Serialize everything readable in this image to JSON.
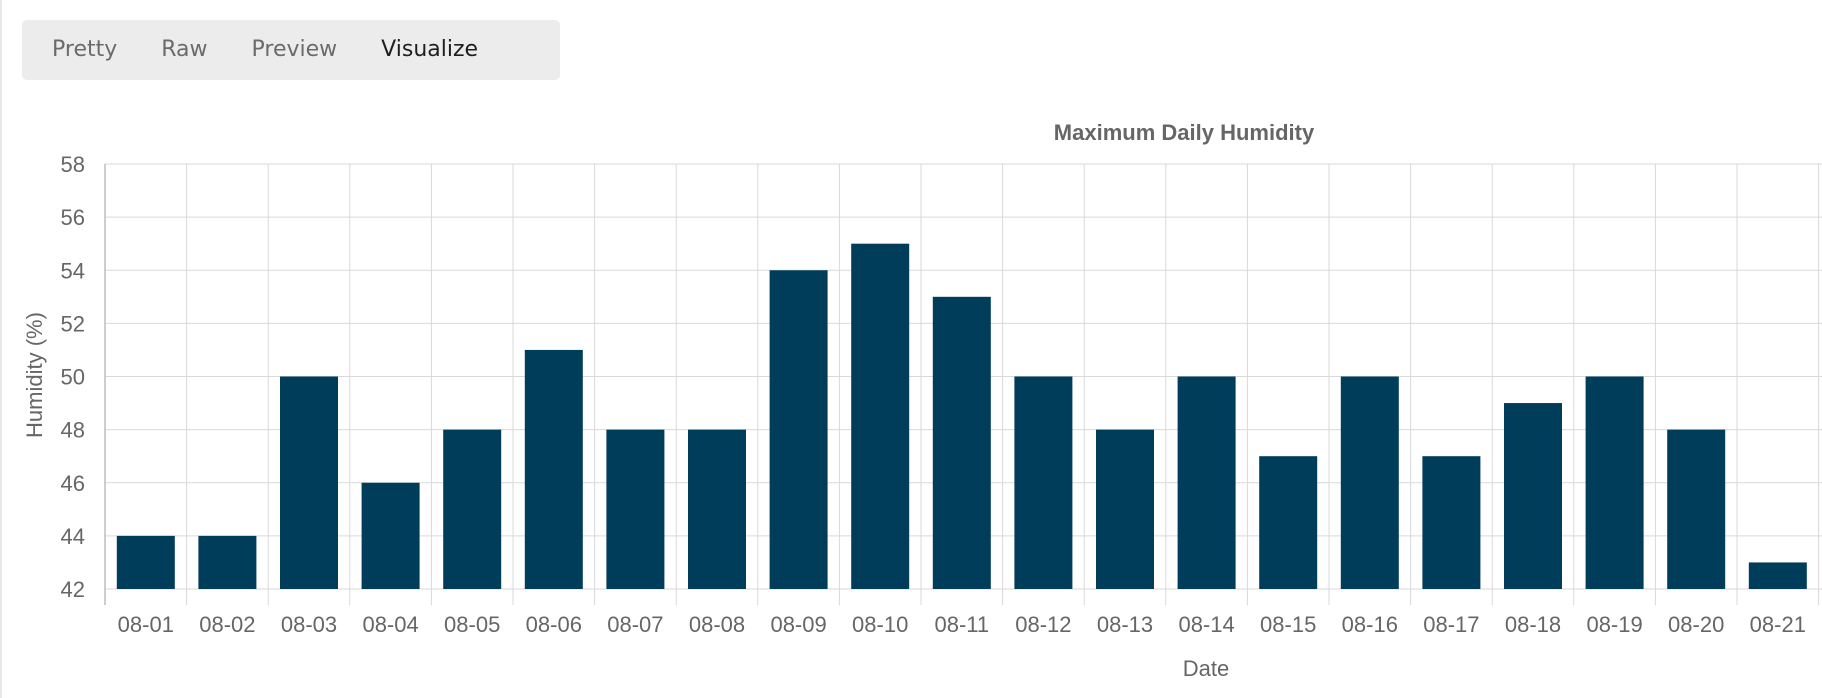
{
  "tabs": [
    {
      "label": "Pretty",
      "active": false
    },
    {
      "label": "Raw",
      "active": false
    },
    {
      "label": "Preview",
      "active": false
    },
    {
      "label": "Visualize",
      "active": true
    }
  ],
  "colors": {
    "bar": "#003d5b",
    "grid": "#d9d9d9",
    "text": "#666666",
    "title": "#666666"
  },
  "chart_data": {
    "type": "bar",
    "title": "Maximum Daily Humidity",
    "xlabel": "Date",
    "ylabel": "Humidity (%)",
    "ylim": [
      42,
      58
    ],
    "yticks": [
      42,
      44,
      46,
      48,
      50,
      52,
      54,
      56,
      58
    ],
    "grid": true,
    "categories": [
      "08-01",
      "08-02",
      "08-03",
      "08-04",
      "08-05",
      "08-06",
      "08-07",
      "08-08",
      "08-09",
      "08-10",
      "08-11",
      "08-12",
      "08-13",
      "08-14",
      "08-15",
      "08-16",
      "08-17",
      "08-18",
      "08-19",
      "08-20",
      "08-21"
    ],
    "values": [
      44,
      44,
      50,
      46,
      48,
      51,
      48,
      48,
      54,
      55,
      53,
      50,
      48,
      50,
      47,
      50,
      47,
      49,
      50,
      48,
      43
    ]
  }
}
